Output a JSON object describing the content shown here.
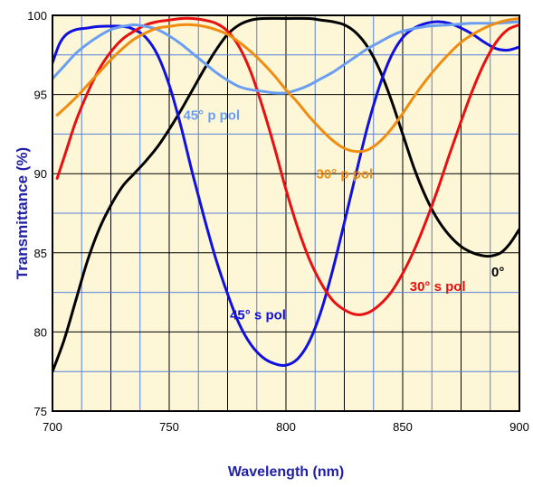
{
  "chart_data": {
    "type": "line",
    "title": "",
    "xlabel": "Wavelength (nm)",
    "ylabel": "Transmittance (%)",
    "xlim": [
      700,
      900
    ],
    "ylim": [
      75,
      100
    ],
    "x_ticks": [
      "700",
      "750",
      "800",
      "850",
      "900"
    ],
    "y_ticks": [
      "75",
      "80",
      "85",
      "90",
      "95",
      "100"
    ],
    "grid": true,
    "background_color": "#fdf7d7",
    "gridline_color_major": "#000000",
    "gridline_color_minor": "#5a7fd8",
    "series": [
      {
        "name": "0°",
        "color": "#000000",
        "label_at": [
          888,
          83.5
        ],
        "points": [
          [
            700,
            77.5
          ],
          [
            705,
            79.5
          ],
          [
            710,
            82
          ],
          [
            715,
            84.5
          ],
          [
            720,
            86.5
          ],
          [
            725,
            88
          ],
          [
            730,
            89.2
          ],
          [
            735,
            90
          ],
          [
            740,
            90.8
          ],
          [
            745,
            91.7
          ],
          [
            750,
            92.8
          ],
          [
            755,
            94
          ],
          [
            760,
            95.3
          ],
          [
            765,
            96.6
          ],
          [
            770,
            97.8
          ],
          [
            775,
            98.8
          ],
          [
            780,
            99.4
          ],
          [
            785,
            99.7
          ],
          [
            790,
            99.8
          ],
          [
            800,
            99.8
          ],
          [
            810,
            99.8
          ],
          [
            815,
            99.7
          ],
          [
            820,
            99.6
          ],
          [
            825,
            99.4
          ],
          [
            830,
            98.9
          ],
          [
            835,
            98
          ],
          [
            840,
            96.6
          ],
          [
            845,
            94.7
          ],
          [
            850,
            92.5
          ],
          [
            855,
            90.3
          ],
          [
            860,
            88.5
          ],
          [
            865,
            87.1
          ],
          [
            870,
            86.1
          ],
          [
            875,
            85.4
          ],
          [
            880,
            85
          ],
          [
            885,
            84.8
          ],
          [
            888,
            84.8
          ],
          [
            892,
            85
          ],
          [
            896,
            85.6
          ],
          [
            900,
            86.5
          ]
        ]
      },
      {
        "name": "45° s pol",
        "color": "#1010e0",
        "label_at": [
          776,
          80.8
        ],
        "points": [
          [
            700,
            97
          ],
          [
            703,
            98.2
          ],
          [
            706,
            98.8
          ],
          [
            710,
            99.1
          ],
          [
            715,
            99.2
          ],
          [
            720,
            99.3
          ],
          [
            730,
            99.3
          ],
          [
            735,
            99.1
          ],
          [
            740,
            98.6
          ],
          [
            745,
            97.5
          ],
          [
            750,
            95.6
          ],
          [
            755,
            93
          ],
          [
            760,
            90
          ],
          [
            765,
            87.2
          ],
          [
            770,
            84.6
          ],
          [
            775,
            82.4
          ],
          [
            780,
            80.5
          ],
          [
            785,
            79.2
          ],
          [
            790,
            78.4
          ],
          [
            795,
            78
          ],
          [
            800,
            77.9
          ],
          [
            805,
            78.3
          ],
          [
            810,
            79.4
          ],
          [
            815,
            81.3
          ],
          [
            820,
            83.9
          ],
          [
            825,
            86.9
          ],
          [
            830,
            90
          ],
          [
            835,
            93
          ],
          [
            840,
            95.5
          ],
          [
            845,
            97.4
          ],
          [
            850,
            98.6
          ],
          [
            855,
            99.2
          ],
          [
            860,
            99.5
          ],
          [
            865,
            99.6
          ],
          [
            870,
            99.5
          ],
          [
            875,
            99.2
          ],
          [
            880,
            98.8
          ],
          [
            885,
            98.3
          ],
          [
            890,
            97.9
          ],
          [
            895,
            97.8
          ],
          [
            900,
            98
          ]
        ]
      },
      {
        "name": "30° s pol",
        "color": "#e81010",
        "label_at": [
          853,
          82.6
        ],
        "points": [
          [
            702,
            89.7
          ],
          [
            706,
            91.5
          ],
          [
            710,
            93.3
          ],
          [
            715,
            95.1
          ],
          [
            720,
            96.6
          ],
          [
            725,
            97.7
          ],
          [
            730,
            98.5
          ],
          [
            735,
            99
          ],
          [
            740,
            99.4
          ],
          [
            745,
            99.6
          ],
          [
            750,
            99.7
          ],
          [
            755,
            99.8
          ],
          [
            760,
            99.8
          ],
          [
            765,
            99.7
          ],
          [
            770,
            99.5
          ],
          [
            775,
            99
          ],
          [
            780,
            98
          ],
          [
            785,
            96.4
          ],
          [
            790,
            94.2
          ],
          [
            795,
            91.7
          ],
          [
            800,
            89
          ],
          [
            805,
            86.6
          ],
          [
            810,
            84.6
          ],
          [
            815,
            83.1
          ],
          [
            820,
            82
          ],
          [
            825,
            81.4
          ],
          [
            830,
            81.1
          ],
          [
            835,
            81.2
          ],
          [
            840,
            81.7
          ],
          [
            845,
            82.5
          ],
          [
            850,
            83.7
          ],
          [
            855,
            85.2
          ],
          [
            860,
            87
          ],
          [
            865,
            89
          ],
          [
            870,
            91.2
          ],
          [
            875,
            93.3
          ],
          [
            880,
            95.3
          ],
          [
            885,
            97
          ],
          [
            890,
            98.3
          ],
          [
            895,
            99.1
          ],
          [
            900,
            99.4
          ]
        ]
      },
      {
        "name": "45° p pol",
        "color": "#6a9ef2",
        "label_at": [
          756,
          93.4
        ],
        "points": [
          [
            700,
            96
          ],
          [
            705,
            96.8
          ],
          [
            710,
            97.6
          ],
          [
            715,
            98.2
          ],
          [
            720,
            98.7
          ],
          [
            725,
            99.1
          ],
          [
            730,
            99.3
          ],
          [
            735,
            99.4
          ],
          [
            740,
            99.3
          ],
          [
            745,
            99.1
          ],
          [
            750,
            98.7
          ],
          [
            755,
            98.2
          ],
          [
            760,
            97.6
          ],
          [
            765,
            97
          ],
          [
            770,
            96.4
          ],
          [
            775,
            95.9
          ],
          [
            780,
            95.5
          ],
          [
            785,
            95.3
          ],
          [
            790,
            95.2
          ],
          [
            795,
            95.1
          ],
          [
            800,
            95.1
          ],
          [
            805,
            95.3
          ],
          [
            810,
            95.6
          ],
          [
            815,
            96
          ],
          [
            820,
            96.4
          ],
          [
            825,
            96.9
          ],
          [
            830,
            97.4
          ],
          [
            835,
            97.9
          ],
          [
            840,
            98.3
          ],
          [
            845,
            98.7
          ],
          [
            850,
            99
          ],
          [
            860,
            99.3
          ],
          [
            870,
            99.4
          ],
          [
            880,
            99.5
          ],
          [
            890,
            99.5
          ],
          [
            900,
            99.6
          ]
        ]
      },
      {
        "name": "30° p pol",
        "color": "#f08c10",
        "label_at": [
          813,
          89.7
        ],
        "points": [
          [
            702,
            93.7
          ],
          [
            705,
            94.1
          ],
          [
            710,
            94.8
          ],
          [
            715,
            95.6
          ],
          [
            720,
            96.4
          ],
          [
            725,
            97.2
          ],
          [
            730,
            97.9
          ],
          [
            735,
            98.5
          ],
          [
            740,
            98.9
          ],
          [
            745,
            99.2
          ],
          [
            750,
            99.3
          ],
          [
            755,
            99.4
          ],
          [
            760,
            99.4
          ],
          [
            765,
            99.3
          ],
          [
            770,
            99.1
          ],
          [
            775,
            98.8
          ],
          [
            780,
            98.3
          ],
          [
            785,
            97.7
          ],
          [
            790,
            97
          ],
          [
            795,
            96.2
          ],
          [
            800,
            95.3
          ],
          [
            805,
            94.5
          ],
          [
            810,
            93.6
          ],
          [
            815,
            92.8
          ],
          [
            820,
            92.1
          ],
          [
            825,
            91.6
          ],
          [
            830,
            91.4
          ],
          [
            835,
            91.5
          ],
          [
            840,
            92
          ],
          [
            845,
            92.8
          ],
          [
            850,
            93.8
          ],
          [
            855,
            94.9
          ],
          [
            860,
            95.9
          ],
          [
            865,
            96.8
          ],
          [
            870,
            97.6
          ],
          [
            875,
            98.3
          ],
          [
            880,
            98.8
          ],
          [
            885,
            99.2
          ],
          [
            890,
            99.5
          ],
          [
            895,
            99.7
          ],
          [
            900,
            99.8
          ]
        ]
      }
    ]
  }
}
